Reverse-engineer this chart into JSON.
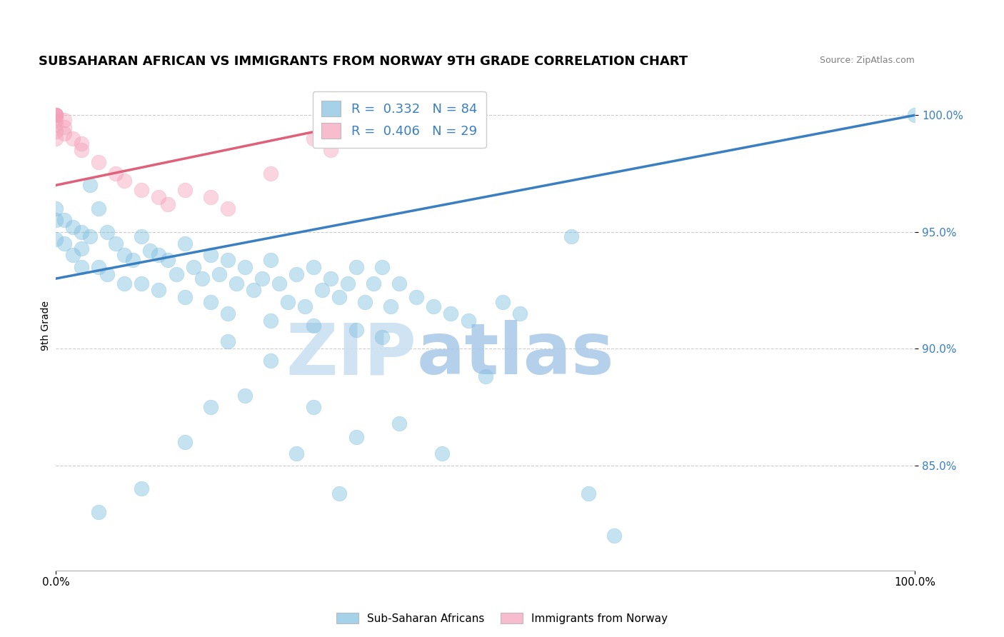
{
  "title": "SUBSAHARAN AFRICAN VS IMMIGRANTS FROM NORWAY 9TH GRADE CORRELATION CHART",
  "source": "Source: ZipAtlas.com",
  "ylabel": "9th Grade",
  "xlim": [
    0.0,
    1.0
  ],
  "ylim": [
    0.805,
    1.015
  ],
  "yticks": [
    0.85,
    0.9,
    0.95,
    1.0
  ],
  "ytick_labels": [
    "85.0%",
    "90.0%",
    "95.0%",
    "100.0%"
  ],
  "xticks": [
    0.0,
    1.0
  ],
  "xtick_labels": [
    "0.0%",
    "100.0%"
  ],
  "legend_blue_R": "0.332",
  "legend_blue_N": "84",
  "legend_pink_R": "0.406",
  "legend_pink_N": "29",
  "blue_color": "#7fbfdf",
  "pink_color": "#f4a0b8",
  "blue_line_color": "#3a7fc1",
  "pink_line_color": "#e0607a",
  "watermark_zip": "ZIP",
  "watermark_atlas": "atlas",
  "blue_scatter_x": [
    0.0,
    0.0,
    0.0,
    0.01,
    0.01,
    0.02,
    0.02,
    0.03,
    0.03,
    0.03,
    0.04,
    0.04,
    0.05,
    0.05,
    0.06,
    0.06,
    0.07,
    0.08,
    0.08,
    0.09,
    0.1,
    0.1,
    0.11,
    0.12,
    0.12,
    0.13,
    0.14,
    0.15,
    0.15,
    0.16,
    0.17,
    0.18,
    0.18,
    0.19,
    0.2,
    0.2,
    0.21,
    0.22,
    0.23,
    0.24,
    0.25,
    0.25,
    0.26,
    0.27,
    0.28,
    0.29,
    0.3,
    0.3,
    0.31,
    0.32,
    0.33,
    0.34,
    0.35,
    0.35,
    0.36,
    0.37,
    0.38,
    0.38,
    0.39,
    0.4,
    0.42,
    0.44,
    0.46,
    0.48,
    0.5,
    0.52,
    0.54,
    0.6,
    0.62,
    0.65,
    0.2,
    0.25,
    0.3,
    0.35,
    0.4,
    0.45,
    1.0,
    0.05,
    0.1,
    0.15,
    0.18,
    0.22,
    0.28,
    0.33
  ],
  "blue_scatter_y": [
    0.96,
    0.955,
    0.947,
    0.955,
    0.945,
    0.952,
    0.94,
    0.95,
    0.943,
    0.935,
    0.97,
    0.948,
    0.96,
    0.935,
    0.95,
    0.932,
    0.945,
    0.94,
    0.928,
    0.938,
    0.948,
    0.928,
    0.942,
    0.94,
    0.925,
    0.938,
    0.932,
    0.945,
    0.922,
    0.935,
    0.93,
    0.94,
    0.92,
    0.932,
    0.938,
    0.915,
    0.928,
    0.935,
    0.925,
    0.93,
    0.938,
    0.912,
    0.928,
    0.92,
    0.932,
    0.918,
    0.935,
    0.91,
    0.925,
    0.93,
    0.922,
    0.928,
    0.935,
    0.908,
    0.92,
    0.928,
    0.935,
    0.905,
    0.918,
    0.928,
    0.922,
    0.918,
    0.915,
    0.912,
    0.888,
    0.92,
    0.915,
    0.948,
    0.838,
    0.82,
    0.903,
    0.895,
    0.875,
    0.862,
    0.868,
    0.855,
    1.0,
    0.83,
    0.84,
    0.86,
    0.875,
    0.88,
    0.855,
    0.838
  ],
  "pink_scatter_x": [
    0.0,
    0.0,
    0.0,
    0.0,
    0.0,
    0.0,
    0.0,
    0.0,
    0.0,
    0.01,
    0.01,
    0.01,
    0.02,
    0.03,
    0.03,
    0.05,
    0.07,
    0.08,
    0.1,
    0.12,
    0.13,
    0.15,
    0.18,
    0.2,
    0.25,
    0.3,
    0.32,
    0.38,
    0.42
  ],
  "pink_scatter_y": [
    1.0,
    1.0,
    1.0,
    1.0,
    1.0,
    0.998,
    0.996,
    0.993,
    0.99,
    0.998,
    0.995,
    0.992,
    0.99,
    0.988,
    0.985,
    0.98,
    0.975,
    0.972,
    0.968,
    0.965,
    0.962,
    0.968,
    0.965,
    0.96,
    0.975,
    0.99,
    0.985,
    0.99,
    0.992
  ],
  "blue_line_x": [
    0.0,
    1.0
  ],
  "blue_line_y": [
    0.93,
    1.0
  ],
  "pink_line_x": [
    0.0,
    0.42
  ],
  "pink_line_y": [
    0.97,
    1.002
  ]
}
